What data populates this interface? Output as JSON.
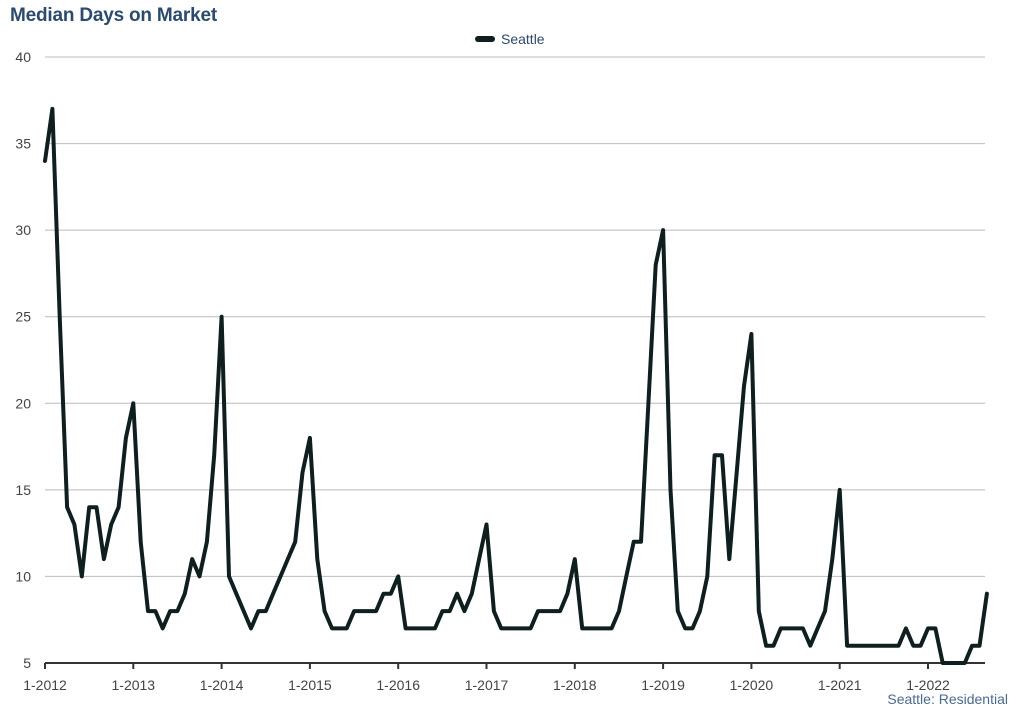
{
  "title": "Median Days on Market",
  "source_note": "Seattle: Residential",
  "colors": {
    "line": "#0f1e1e",
    "grid": "#bbbbbb",
    "title": "#2c4a6e"
  },
  "chart_data": {
    "type": "line",
    "title": "Median Days on Market",
    "xlabel": "",
    "ylabel": "",
    "ylim": [
      5,
      40
    ],
    "yticks": [
      5,
      10,
      15,
      20,
      25,
      30,
      35,
      40
    ],
    "xtick_labels": [
      "1-2012",
      "1-2013",
      "1-2014",
      "1-2015",
      "1-2016",
      "1-2017",
      "1-2018",
      "1-2019",
      "1-2020",
      "1-2021",
      "1-2022"
    ],
    "grid": true,
    "legend_position": "top-center",
    "x_start": "2012-01",
    "x_end": "2022-08",
    "series": [
      {
        "name": "Seattle",
        "values": [
          34,
          37,
          25,
          14,
          13,
          10,
          14,
          14,
          11,
          13,
          14,
          18,
          20,
          12,
          8,
          8,
          7,
          8,
          8,
          9,
          11,
          10,
          12,
          17,
          25,
          10,
          9,
          8,
          7,
          8,
          8,
          9,
          10,
          11,
          12,
          16,
          18,
          11,
          8,
          7,
          7,
          7,
          8,
          8,
          8,
          8,
          9,
          9,
          10,
          7,
          7,
          7,
          7,
          7,
          8,
          8,
          9,
          8,
          9,
          11,
          13,
          8,
          7,
          7,
          7,
          7,
          7,
          8,
          8,
          8,
          8,
          9,
          11,
          7,
          7,
          7,
          7,
          7,
          8,
          10,
          12,
          12,
          20,
          28,
          30,
          15,
          8,
          7,
          7,
          8,
          10,
          17,
          17,
          11,
          16,
          21,
          24,
          8,
          6,
          6,
          7,
          7,
          7,
          7,
          6,
          7,
          8,
          11,
          15,
          6,
          6,
          6,
          6,
          6,
          6,
          6,
          6,
          7,
          6,
          6,
          7,
          7,
          5,
          5,
          5,
          5,
          6,
          6,
          9
        ]
      }
    ]
  }
}
